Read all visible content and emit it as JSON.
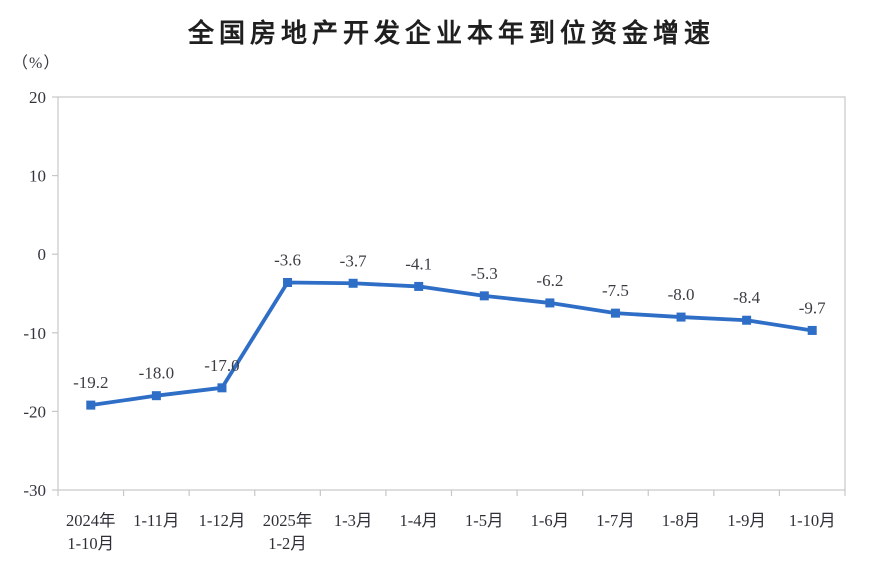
{
  "chart_data": {
    "type": "line",
    "title": "全国房地产开发企业本年到位资金增速",
    "ylabel": "（%）",
    "xlabel": "",
    "categories": [
      "2024年\n1-10月",
      "1-11月",
      "1-12月",
      "2025年\n1-2月",
      "1-3月",
      "1-4月",
      "1-5月",
      "1-6月",
      "1-7月",
      "1-8月",
      "1-9月",
      "1-10月"
    ],
    "values": [
      -19.2,
      -18.0,
      -17.0,
      -3.6,
      -3.7,
      -4.1,
      -5.3,
      -6.2,
      -7.5,
      -8.0,
      -8.4,
      -9.7
    ],
    "point_labels": [
      "-19.2",
      "-18.0",
      "-17.0",
      "-3.6",
      "-3.7",
      "-4.1",
      "-5.3",
      "-6.2",
      "-7.5",
      "-8.0",
      "-8.4",
      "-9.7"
    ],
    "ylim": [
      -30,
      20
    ],
    "yticks": [
      20,
      10,
      0,
      -10,
      -20,
      -30
    ],
    "grid": false,
    "legend": "none",
    "line_color": "#2E6EC6",
    "marker": "square",
    "axis_color": "#c7c7c7"
  }
}
